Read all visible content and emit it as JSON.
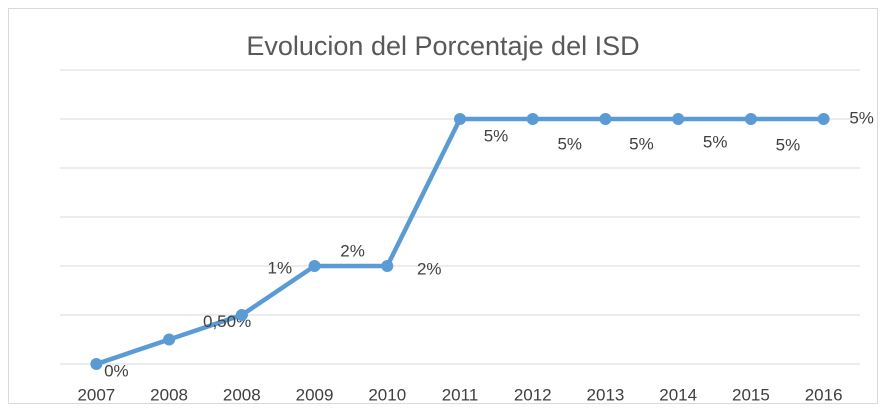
{
  "chart_data": {
    "type": "line",
    "title": "Evolucion del Porcentaje del ISD",
    "categories": [
      "2007",
      "2008",
      "2008",
      "2009",
      "2010",
      "2011",
      "2012",
      "2013",
      "2014",
      "2015",
      "2016"
    ],
    "series": [
      {
        "color": "#5b9bd5",
        "values": [
          0,
          0.5,
          1,
          2,
          2,
          5,
          5,
          5,
          5,
          5,
          5
        ],
        "value_labels": [
          "0%",
          "0,50%",
          "1%",
          "2%",
          "2%",
          "5%",
          "5%",
          "5%",
          "5%",
          "5%",
          "5%"
        ]
      }
    ],
    "ylim": [
      0,
      6
    ],
    "yticks": [
      0,
      1,
      2,
      3,
      4,
      5,
      6
    ],
    "grid": true
  }
}
